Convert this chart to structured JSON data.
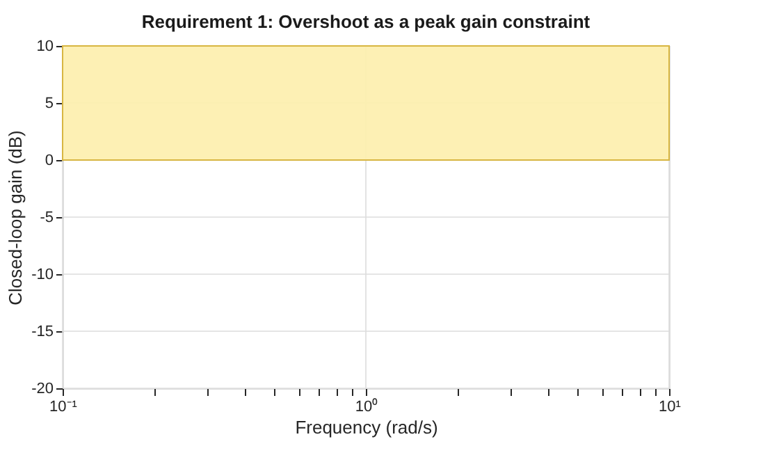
{
  "chart_data": {
    "type": "line",
    "title": "Requirement 1: Overshoot as a peak gain constraint",
    "xlabel": "Frequency (rad/s)",
    "ylabel": "Closed-loop gain (dB)",
    "log": "x",
    "xlim": [
      0.1,
      10
    ],
    "ylim": [
      -20,
      10
    ],
    "xticks": [
      {
        "value": 0.1,
        "label": "10⁻¹"
      },
      {
        "value": 0.2,
        "label": null
      },
      {
        "value": 0.3,
        "label": null
      },
      {
        "value": 0.4,
        "label": null
      },
      {
        "value": 0.5,
        "label": null
      },
      {
        "value": 0.6,
        "label": null
      },
      {
        "value": 0.7,
        "label": null
      },
      {
        "value": 0.8,
        "label": null
      },
      {
        "value": 0.9,
        "label": null
      },
      {
        "value": 1,
        "label": "10⁰"
      },
      {
        "value": 2,
        "label": null
      },
      {
        "value": 3,
        "label": null
      },
      {
        "value": 4,
        "label": null
      },
      {
        "value": 5,
        "label": null
      },
      {
        "value": 6,
        "label": null
      },
      {
        "value": 7,
        "label": null
      },
      {
        "value": 8,
        "label": null
      },
      {
        "value": 9,
        "label": null
      },
      {
        "value": 10,
        "label": "10¹"
      }
    ],
    "yticks": [
      -20,
      -15,
      -10,
      -5,
      0,
      5,
      10
    ],
    "bands": [
      {
        "axis": "y",
        "from": 0,
        "to": 10,
        "color": "#fdf0b0"
      }
    ],
    "grid": true
  }
}
